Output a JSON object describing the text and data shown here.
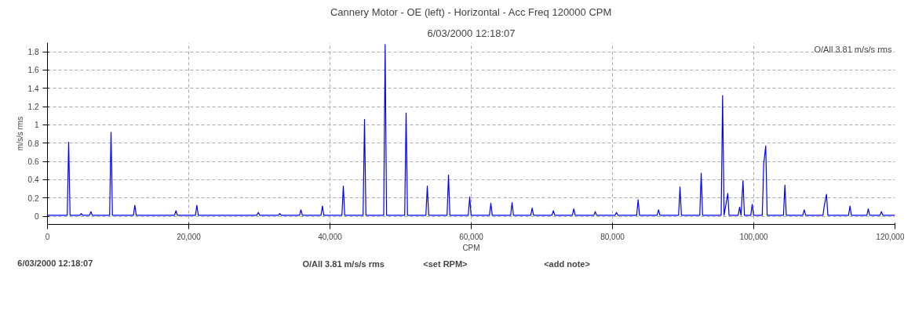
{
  "chart_data": {
    "type": "line",
    "title": "Cannery Motor - OE (left) - Horizontal - Acc Freq 120000 CPM",
    "subtitle": "6/03/2000 12:18:07",
    "xlabel": "CPM",
    "ylabel": "m/s/s rms",
    "xlim": [
      0,
      120000
    ],
    "ylim": [
      -0.09,
      1.9
    ],
    "xticks": [
      {
        "value": 0,
        "label": "0"
      },
      {
        "value": 20000,
        "label": "20,000"
      },
      {
        "value": 40000,
        "label": "40,000"
      },
      {
        "value": 60000,
        "label": "60,000"
      },
      {
        "value": 80000,
        "label": "80,000"
      },
      {
        "value": 100000,
        "label": "100,000"
      },
      {
        "value": 120000,
        "label": "120,000"
      }
    ],
    "yticks": [
      0,
      0.2,
      0.4,
      0.6,
      0.8,
      1,
      1.2,
      1.4,
      1.6,
      1.8
    ],
    "grid": true,
    "legend": "bottom",
    "line_style": "solid",
    "marker": "none",
    "annotations": [
      "O/All 3.81 m/s/s rms",
      "O/All 3.81 m/s/s rms",
      "<set RPM>",
      "<add note>"
    ],
    "series": [
      {
        "name": "6/03/2000 12:18:07",
        "color": "#0000ff",
        "x": [
          0,
          2800,
          3000,
          3200,
          4600,
          4780,
          4960,
          5950,
          6150,
          6350,
          8800,
          9000,
          9200,
          12170,
          12370,
          12570,
          17990,
          18190,
          18390,
          20950,
          21150,
          21350,
          29650,
          29850,
          30050,
          32690,
          32890,
          33090,
          35690,
          35890,
          36090,
          38730,
          38930,
          39130,
          41690,
          41890,
          42090,
          44690,
          44890,
          45090,
          47610,
          47810,
          48010,
          50580,
          50780,
          50980,
          53580,
          53780,
          53980,
          56580,
          56780,
          56980,
          59580,
          59780,
          59980,
          62580,
          62780,
          62980,
          65580,
          65780,
          65980,
          68430,
          68630,
          68830,
          71430,
          71630,
          71830,
          74320,
          74520,
          74720,
          77360,
          77560,
          77760,
          80360,
          80560,
          80760,
          83430,
          83630,
          83830,
          86320,
          86520,
          86720,
          89360,
          89560,
          89760,
          92360,
          92560,
          92760,
          95390,
          95590,
          95800,
          96330,
          96500,
          97800,
          98000,
          98200,
          98480,
          98680,
          99580,
          99780,
          99980,
          101210,
          101410,
          101700,
          101900,
          104210,
          104410,
          104610,
          106950,
          107150,
          107350,
          109800,
          110000,
          110300,
          110500,
          113430,
          113630,
          113830,
          116020,
          116220,
          116420,
          117880,
          118080,
          118280,
          120000
        ],
        "values": [
          0.01,
          0.01,
          0.81,
          0.01,
          0.01,
          0.03,
          0.01,
          0.01,
          0.05,
          0.01,
          0.01,
          0.92,
          0.01,
          0.01,
          0.12,
          0.01,
          0.01,
          0.06,
          0.01,
          0.01,
          0.12,
          0.01,
          0.01,
          0.04,
          0.01,
          0.01,
          0.03,
          0.01,
          0.01,
          0.07,
          0.01,
          0.01,
          0.11,
          0.01,
          0.01,
          0.33,
          0.01,
          0.01,
          1.06,
          0.01,
          0.01,
          1.88,
          0.01,
          0.01,
          1.13,
          0.01,
          0.01,
          0.33,
          0.01,
          0.01,
          0.45,
          0.01,
          0.01,
          0.21,
          0.01,
          0.01,
          0.14,
          0.01,
          0.01,
          0.15,
          0.01,
          0.01,
          0.09,
          0.01,
          0.01,
          0.06,
          0.01,
          0.01,
          0.08,
          0.01,
          0.01,
          0.05,
          0.01,
          0.01,
          0.04,
          0.01,
          0.01,
          0.18,
          0.01,
          0.01,
          0.07,
          0.01,
          0.01,
          0.32,
          0.01,
          0.01,
          0.47,
          0.01,
          0.01,
          1.32,
          0.01,
          0.25,
          0.01,
          0.01,
          0.1,
          0.01,
          0.39,
          0.01,
          0.01,
          0.13,
          0.01,
          0.01,
          0.57,
          0.77,
          0.01,
          0.01,
          0.34,
          0.01,
          0.01,
          0.07,
          0.01,
          0.01,
          0.12,
          0.24,
          0.01,
          0.01,
          0.11,
          0.01,
          0.01,
          0.08,
          0.01,
          0.01,
          0.05,
          0.01,
          0.01
        ]
      }
    ]
  }
}
